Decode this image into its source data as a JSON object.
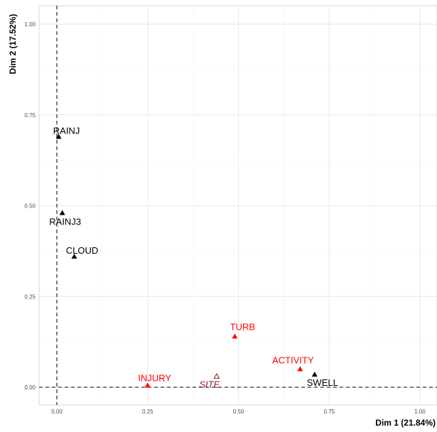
{
  "chart_data": {
    "type": "scatter",
    "xlabel": "Dim 1 (21.84%)",
    "ylabel": "Dim 2 (17.52%)",
    "xlim": [
      -0.05,
      1.05
    ],
    "ylim": [
      -0.05,
      1.05
    ],
    "x_ticks": [
      {
        "value": 0.0,
        "label": "0.00"
      },
      {
        "value": 0.25,
        "label": "0.25"
      },
      {
        "value": 0.5,
        "label": "0.50"
      },
      {
        "value": 0.75,
        "label": "0.75"
      },
      {
        "value": 1.0,
        "label": "1.00"
      }
    ],
    "y_ticks": [
      {
        "value": 0.0,
        "label": "0.00"
      },
      {
        "value": 0.25,
        "label": "0.25"
      },
      {
        "value": 0.5,
        "label": "0.50"
      },
      {
        "value": 0.75,
        "label": "0.75"
      },
      {
        "value": 1.0,
        "label": "1.00"
      }
    ],
    "grid": true,
    "reference_lines": {
      "x": 0,
      "y": 0,
      "style": "dashed"
    },
    "points": [
      {
        "label": "RAINJ",
        "x": 0.005,
        "y": 0.69,
        "color": "#000000",
        "marker": "filled-triangle"
      },
      {
        "label": "RAINJ3",
        "x": 0.015,
        "y": 0.48,
        "color": "#000000",
        "marker": "filled-triangle"
      },
      {
        "label": "CLOUD",
        "x": 0.048,
        "y": 0.36,
        "color": "#000000",
        "marker": "filled-triangle"
      },
      {
        "label": "TURB",
        "x": 0.49,
        "y": 0.14,
        "color": "#ff0000",
        "marker": "filled-triangle"
      },
      {
        "label": "ACTIVITY",
        "x": 0.67,
        "y": 0.05,
        "color": "#ff0000",
        "marker": "filled-triangle"
      },
      {
        "label": "SWELL",
        "x": 0.71,
        "y": 0.035,
        "color": "#000000",
        "marker": "filled-triangle"
      },
      {
        "label": "INJURY",
        "x": 0.25,
        "y": 0.005,
        "color": "#ff0000",
        "marker": "filled-triangle"
      },
      {
        "label": "SITE",
        "x": 0.44,
        "y": 0.03,
        "color": "#8b1a1a",
        "marker": "open-triangle",
        "italic": true
      }
    ]
  }
}
